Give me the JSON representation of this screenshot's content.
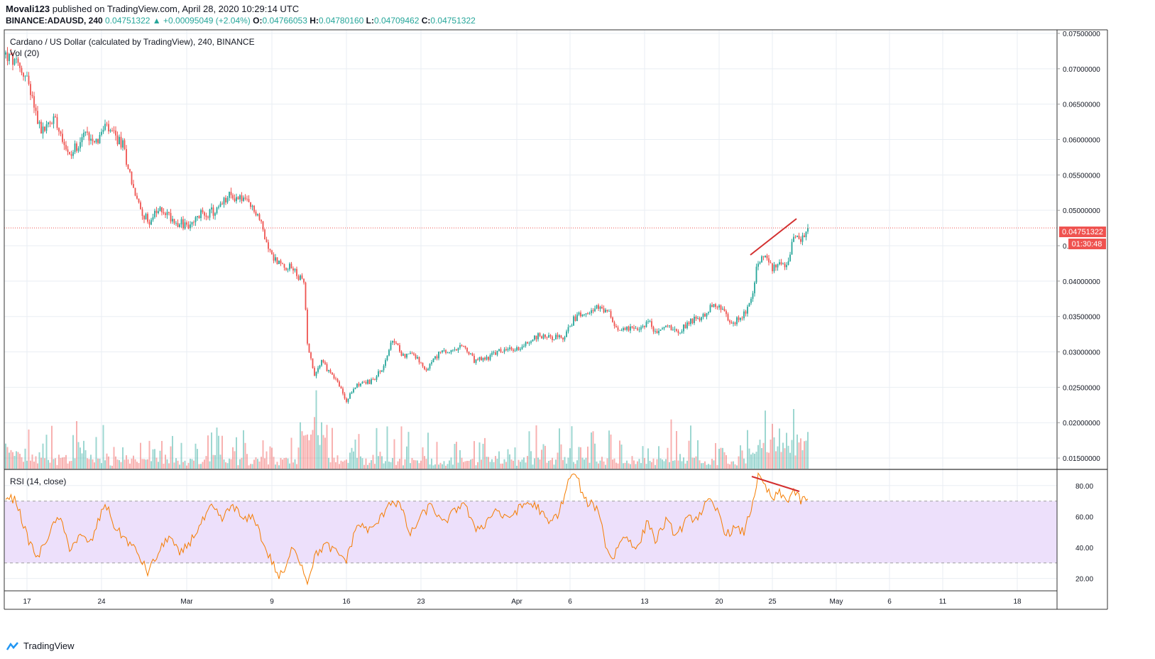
{
  "header": {
    "author": "Movali123",
    "published": "published on TradingView.com, April 28, 2020 10:29:14 UTC",
    "symbol": "BINANCE:ADAUSD, 240",
    "last": "0.04751322",
    "change": "+0.00095049 (+2.04%)",
    "o_label": "O:",
    "o_value": "0.04766053",
    "h_label": "H:",
    "h_value": "0.04780160",
    "l_label": "L:",
    "l_value": "0.04709462",
    "c_label": "C:",
    "c_value": "0.04751322"
  },
  "legend": {
    "main": "Cardano / US Dollar (calculated by TradingView), 240, BINANCE",
    "volume": "Vol (20)",
    "rsi": "RSI (14, close)"
  },
  "price_tag": "0.04751322",
  "timer_tag": "01:30:48",
  "footer": {
    "brand": "TradingView"
  },
  "colors": {
    "up": "#26a69a",
    "down": "#ef5350",
    "rsi_line": "#f57c00",
    "rsi_band": "#ede0fb",
    "trendline": "#d32f2f",
    "price_line": "#ef5350"
  },
  "chart_data": [
    {
      "type": "candlestick",
      "y_ticks": [
        "0.01500000",
        "0.02000000",
        "0.02500000",
        "0.03000000",
        "0.03500000",
        "0.04000000",
        "0.04500000",
        "0.05000000",
        "0.05500000",
        "0.06000000",
        "0.06500000",
        "0.07000000",
        "0.07500000"
      ],
      "ylim": [
        0.0135,
        0.0755
      ],
      "x_ticks": [
        {
          "label": "17",
          "idx": 12
        },
        {
          "label": "24",
          "idx": 54
        },
        {
          "label": "Mar",
          "idx": 102
        },
        {
          "label": "9",
          "idx": 150
        },
        {
          "label": "16",
          "idx": 192
        },
        {
          "label": "23",
          "idx": 234
        },
        {
          "label": "Apr",
          "idx": 288
        },
        {
          "label": "6",
          "idx": 318
        },
        {
          "label": "13",
          "idx": 360
        },
        {
          "label": "20",
          "idx": 402
        },
        {
          "label": "25",
          "idx": 432
        },
        {
          "label": "May",
          "idx": 468
        },
        {
          "label": "6",
          "idx": 498
        },
        {
          "label": "11",
          "idx": 528
        },
        {
          "label": "18",
          "idx": 570
        }
      ],
      "anchors": [
        [
          0,
          0.072
        ],
        [
          6,
          0.0705
        ],
        [
          12,
          0.0688
        ],
        [
          20,
          0.061
        ],
        [
          28,
          0.0632
        ],
        [
          36,
          0.0575
        ],
        [
          44,
          0.0608
        ],
        [
          52,
          0.06
        ],
        [
          56,
          0.0617
        ],
        [
          66,
          0.0592
        ],
        [
          74,
          0.0512
        ],
        [
          80,
          0.0484
        ],
        [
          88,
          0.0502
        ],
        [
          96,
          0.0484
        ],
        [
          104,
          0.0476
        ],
        [
          110,
          0.0495
        ],
        [
          118,
          0.0498
        ],
        [
          126,
          0.052
        ],
        [
          134,
          0.0516
        ],
        [
          142,
          0.0494
        ],
        [
          150,
          0.0435
        ],
        [
          156,
          0.0422
        ],
        [
          162,
          0.0418
        ],
        [
          168,
          0.0396
        ],
        [
          170,
          0.0315
        ],
        [
          174,
          0.0268
        ],
        [
          178,
          0.0285
        ],
        [
          186,
          0.0262
        ],
        [
          192,
          0.023
        ],
        [
          198,
          0.0255
        ],
        [
          206,
          0.0258
        ],
        [
          212,
          0.0275
        ],
        [
          218,
          0.0316
        ],
        [
          224,
          0.0295
        ],
        [
          230,
          0.0298
        ],
        [
          236,
          0.0272
        ],
        [
          244,
          0.0298
        ],
        [
          252,
          0.03
        ],
        [
          258,
          0.0308
        ],
        [
          264,
          0.0287
        ],
        [
          270,
          0.029
        ],
        [
          278,
          0.0301
        ],
        [
          288,
          0.0304
        ],
        [
          294,
          0.0313
        ],
        [
          300,
          0.0323
        ],
        [
          308,
          0.0321
        ],
        [
          314,
          0.0318
        ],
        [
          320,
          0.0346
        ],
        [
          326,
          0.0358
        ],
        [
          334,
          0.0362
        ],
        [
          340,
          0.0354
        ],
        [
          344,
          0.033
        ],
        [
          350,
          0.0336
        ],
        [
          356,
          0.0328
        ],
        [
          362,
          0.0345
        ],
        [
          366,
          0.0326
        ],
        [
          372,
          0.0337
        ],
        [
          380,
          0.033
        ],
        [
          386,
          0.0345
        ],
        [
          392,
          0.0348
        ],
        [
          398,
          0.0366
        ],
        [
          404,
          0.036
        ],
        [
          408,
          0.034
        ],
        [
          414,
          0.0347
        ],
        [
          420,
          0.037
        ],
        [
          424,
          0.043
        ],
        [
          428,
          0.043
        ],
        [
          432,
          0.0418
        ],
        [
          436,
          0.0425
        ],
        [
          440,
          0.0424
        ],
        [
          444,
          0.0463
        ],
        [
          448,
          0.0453
        ],
        [
          452,
          0.0475
        ]
      ],
      "last_idx": 452,
      "last_price": 0.04751322
    },
    {
      "type": "bar",
      "name": "Vol (20)"
    },
    {
      "type": "line",
      "name": "RSI (14, close)",
      "y_ticks": [
        "20.00",
        "40.00",
        "60.00",
        "80.00"
      ],
      "ylim": [
        12,
        90
      ],
      "bands": [
        30,
        70
      ],
      "anchors": [
        [
          0,
          74
        ],
        [
          6,
          70
        ],
        [
          12,
          47
        ],
        [
          18,
          33
        ],
        [
          24,
          48
        ],
        [
          30,
          60
        ],
        [
          36,
          40
        ],
        [
          42,
          47
        ],
        [
          48,
          43
        ],
        [
          56,
          69
        ],
        [
          62,
          52
        ],
        [
          68,
          45
        ],
        [
          74,
          37
        ],
        [
          80,
          24
        ],
        [
          86,
          36
        ],
        [
          92,
          48
        ],
        [
          98,
          35
        ],
        [
          104,
          44
        ],
        [
          110,
          55
        ],
        [
          116,
          66
        ],
        [
          122,
          58
        ],
        [
          128,
          68
        ],
        [
          134,
          57
        ],
        [
          140,
          60
        ],
        [
          146,
          40
        ],
        [
          150,
          31
        ],
        [
          154,
          21
        ],
        [
          158,
          26
        ],
        [
          162,
          42
        ],
        [
          166,
          31
        ],
        [
          170,
          18
        ],
        [
          174,
          34
        ],
        [
          180,
          42
        ],
        [
          186,
          37
        ],
        [
          192,
          32
        ],
        [
          198,
          55
        ],
        [
          206,
          51
        ],
        [
          212,
          60
        ],
        [
          216,
          70
        ],
        [
          222,
          68
        ],
        [
          228,
          48
        ],
        [
          234,
          60
        ],
        [
          240,
          68
        ],
        [
          246,
          55
        ],
        [
          252,
          62
        ],
        [
          258,
          70
        ],
        [
          264,
          52
        ],
        [
          270,
          55
        ],
        [
          276,
          65
        ],
        [
          282,
          58
        ],
        [
          288,
          64
        ],
        [
          294,
          69
        ],
        [
          300,
          66
        ],
        [
          306,
          55
        ],
        [
          312,
          63
        ],
        [
          318,
          86
        ],
        [
          322,
          86
        ],
        [
          326,
          70
        ],
        [
          330,
          68
        ],
        [
          334,
          65
        ],
        [
          338,
          42
        ],
        [
          342,
          32
        ],
        [
          346,
          44
        ],
        [
          350,
          47
        ],
        [
          356,
          39
        ],
        [
          362,
          58
        ],
        [
          366,
          44
        ],
        [
          372,
          57
        ],
        [
          378,
          48
        ],
        [
          384,
          58
        ],
        [
          390,
          60
        ],
        [
          396,
          70
        ],
        [
          402,
          62
        ],
        [
          406,
          48
        ],
        [
          410,
          52
        ],
        [
          416,
          50
        ],
        [
          420,
          65
        ],
        [
          424,
          86
        ],
        [
          428,
          79
        ],
        [
          432,
          71
        ],
        [
          436,
          75
        ],
        [
          440,
          70
        ],
        [
          444,
          77
        ],
        [
          448,
          70
        ],
        [
          452,
          72
        ]
      ]
    }
  ]
}
